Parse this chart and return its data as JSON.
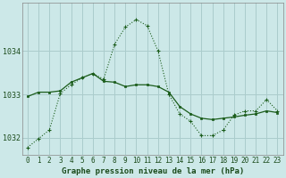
{
  "title": "Graphe pression niveau de la mer (hPa)",
  "bg_color": "#cce8e8",
  "grid_color": "#aacccc",
  "line_color_solid": "#1a5c1a",
  "line_color_dotted": "#1a5c1a",
  "xlim": [
    -0.5,
    23.5
  ],
  "ylim": [
    1031.6,
    1035.1
  ],
  "yticks": [
    1032,
    1033,
    1034
  ],
  "xticks": [
    0,
    1,
    2,
    3,
    4,
    5,
    6,
    7,
    8,
    9,
    10,
    11,
    12,
    13,
    14,
    15,
    16,
    17,
    18,
    19,
    20,
    21,
    22,
    23
  ],
  "dotted_x": [
    0,
    1,
    2,
    3,
    4,
    5,
    6,
    7,
    8,
    9,
    10,
    11,
    12,
    13,
    14,
    15,
    16,
    17,
    18,
    19,
    20,
    21,
    22,
    23
  ],
  "dotted_y": [
    1031.78,
    1031.98,
    1032.18,
    1033.02,
    1033.22,
    1033.38,
    1033.48,
    1033.35,
    1034.15,
    1034.55,
    1034.72,
    1034.58,
    1034.0,
    1033.0,
    1032.55,
    1032.38,
    1032.05,
    1032.05,
    1032.18,
    1032.52,
    1032.62,
    1032.62,
    1032.88,
    1032.62
  ],
  "solid_x": [
    0,
    1,
    2,
    3,
    4,
    5,
    6,
    7,
    8,
    9,
    10,
    11,
    12,
    13,
    14,
    15,
    16,
    17,
    18,
    19,
    20,
    21,
    22,
    23
  ],
  "solid_y": [
    1032.95,
    1033.05,
    1033.05,
    1033.08,
    1033.28,
    1033.38,
    1033.48,
    1033.3,
    1033.28,
    1033.18,
    1033.22,
    1033.22,
    1033.18,
    1033.05,
    1032.72,
    1032.55,
    1032.45,
    1032.42,
    1032.45,
    1032.48,
    1032.52,
    1032.55,
    1032.62,
    1032.58
  ],
  "tick_fontsize": 5.5,
  "label_fontsize": 6.5
}
